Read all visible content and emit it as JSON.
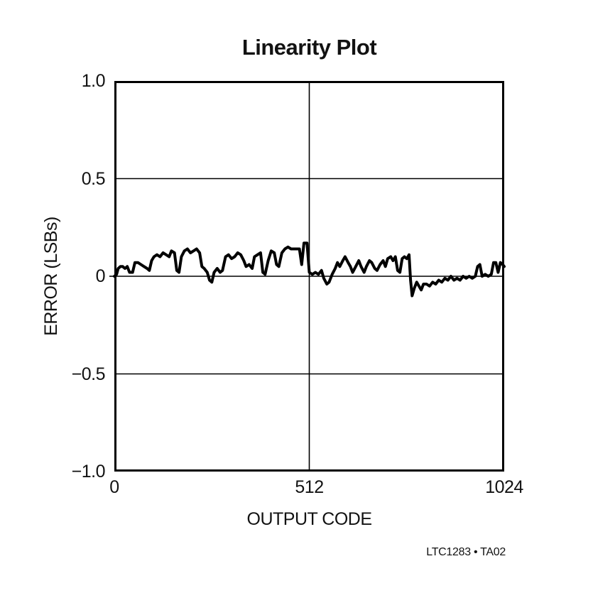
{
  "page": {
    "background": "#ffffff",
    "text_color": "#121212"
  },
  "footer": {
    "figure_ref": "LTC1283 • TA02"
  },
  "chart_data": {
    "type": "line",
    "title": "Linearity Plot",
    "xlabel": "OUTPUT CODE",
    "ylabel": "ERROR (LSBs)",
    "xlim": [
      0,
      1024
    ],
    "ylim": [
      -1.0,
      1.0
    ],
    "grid": true,
    "legend_position": "none",
    "frame_color": "#000000",
    "grid_color": "#000000",
    "line_color": "#000000",
    "annotation": "LTC1283 • TA02",
    "x_ticks": [
      {
        "v": 0,
        "label": "0"
      },
      {
        "v": 512,
        "label": "512"
      },
      {
        "v": 1024,
        "label": "1024"
      }
    ],
    "y_ticks": [
      {
        "v": 1.0,
        "label": "1.0"
      },
      {
        "v": 0.5,
        "label": "0.5"
      },
      {
        "v": 0,
        "label": "0"
      },
      {
        "v": -0.5,
        "label": "−0.5"
      },
      {
        "v": -1.0,
        "label": "−1.0"
      }
    ],
    "series": [
      {
        "name": "linearity error (LSBs) vs output code",
        "points": [
          [
            0,
            0.0
          ],
          [
            6,
            0.01
          ],
          [
            10,
            0.04
          ],
          [
            16,
            0.05
          ],
          [
            22,
            0.05
          ],
          [
            28,
            0.04
          ],
          [
            34,
            0.05
          ],
          [
            40,
            0.02
          ],
          [
            48,
            0.02
          ],
          [
            54,
            0.07
          ],
          [
            62,
            0.07
          ],
          [
            70,
            0.06
          ],
          [
            78,
            0.05
          ],
          [
            86,
            0.04
          ],
          [
            92,
            0.03
          ],
          [
            98,
            0.08
          ],
          [
            104,
            0.1
          ],
          [
            112,
            0.11
          ],
          [
            120,
            0.1
          ],
          [
            128,
            0.12
          ],
          [
            136,
            0.11
          ],
          [
            144,
            0.1
          ],
          [
            150,
            0.13
          ],
          [
            158,
            0.12
          ],
          [
            164,
            0.03
          ],
          [
            170,
            0.02
          ],
          [
            176,
            0.1
          ],
          [
            184,
            0.13
          ],
          [
            192,
            0.14
          ],
          [
            200,
            0.12
          ],
          [
            208,
            0.13
          ],
          [
            216,
            0.14
          ],
          [
            224,
            0.12
          ],
          [
            230,
            0.05
          ],
          [
            236,
            0.04
          ],
          [
            244,
            0.02
          ],
          [
            250,
            -0.02
          ],
          [
            256,
            -0.03
          ],
          [
            262,
            0.02
          ],
          [
            270,
            0.04
          ],
          [
            278,
            0.02
          ],
          [
            284,
            0.03
          ],
          [
            292,
            0.1
          ],
          [
            300,
            0.11
          ],
          [
            308,
            0.09
          ],
          [
            316,
            0.1
          ],
          [
            324,
            0.12
          ],
          [
            332,
            0.11
          ],
          [
            340,
            0.08
          ],
          [
            346,
            0.05
          ],
          [
            354,
            0.06
          ],
          [
            362,
            0.04
          ],
          [
            368,
            0.1
          ],
          [
            376,
            0.11
          ],
          [
            384,
            0.12
          ],
          [
            390,
            0.02
          ],
          [
            396,
            0.01
          ],
          [
            404,
            0.08
          ],
          [
            412,
            0.13
          ],
          [
            420,
            0.12
          ],
          [
            426,
            0.06
          ],
          [
            432,
            0.05
          ],
          [
            440,
            0.12
          ],
          [
            448,
            0.14
          ],
          [
            456,
            0.15
          ],
          [
            464,
            0.14
          ],
          [
            472,
            0.14
          ],
          [
            480,
            0.14
          ],
          [
            486,
            0.14
          ],
          [
            492,
            0.06
          ],
          [
            498,
            0.17
          ],
          [
            506,
            0.17
          ],
          [
            512,
            0.02
          ],
          [
            520,
            0.01
          ],
          [
            528,
            0.02
          ],
          [
            536,
            0.01
          ],
          [
            544,
            0.03
          ],
          [
            550,
            -0.01
          ],
          [
            558,
            -0.04
          ],
          [
            564,
            -0.03
          ],
          [
            572,
            0.01
          ],
          [
            580,
            0.04
          ],
          [
            586,
            0.07
          ],
          [
            592,
            0.05
          ],
          [
            600,
            0.08
          ],
          [
            606,
            0.1
          ],
          [
            614,
            0.07
          ],
          [
            620,
            0.05
          ],
          [
            626,
            0.02
          ],
          [
            634,
            0.05
          ],
          [
            642,
            0.08
          ],
          [
            648,
            0.05
          ],
          [
            656,
            0.02
          ],
          [
            662,
            0.05
          ],
          [
            670,
            0.08
          ],
          [
            676,
            0.07
          ],
          [
            684,
            0.04
          ],
          [
            690,
            0.03
          ],
          [
            698,
            0.06
          ],
          [
            706,
            0.08
          ],
          [
            712,
            0.05
          ],
          [
            718,
            0.09
          ],
          [
            726,
            0.1
          ],
          [
            732,
            0.08
          ],
          [
            738,
            0.1
          ],
          [
            744,
            0.03
          ],
          [
            750,
            0.02
          ],
          [
            756,
            0.09
          ],
          [
            762,
            0.1
          ],
          [
            768,
            0.09
          ],
          [
            774,
            0.11
          ],
          [
            778,
            -0.02
          ],
          [
            782,
            -0.1
          ],
          [
            788,
            -0.06
          ],
          [
            794,
            -0.03
          ],
          [
            800,
            -0.05
          ],
          [
            806,
            -0.07
          ],
          [
            812,
            -0.04
          ],
          [
            820,
            -0.04
          ],
          [
            828,
            -0.05
          ],
          [
            836,
            -0.03
          ],
          [
            844,
            -0.04
          ],
          [
            852,
            -0.02
          ],
          [
            860,
            -0.03
          ],
          [
            868,
            -0.01
          ],
          [
            876,
            -0.02
          ],
          [
            884,
            0.0
          ],
          [
            892,
            -0.02
          ],
          [
            900,
            -0.01
          ],
          [
            908,
            -0.02
          ],
          [
            916,
            0.0
          ],
          [
            924,
            -0.01
          ],
          [
            932,
            0.0
          ],
          [
            940,
            -0.01
          ],
          [
            948,
            0.0
          ],
          [
            954,
            0.05
          ],
          [
            960,
            0.06
          ],
          [
            966,
            0.0
          ],
          [
            974,
            0.01
          ],
          [
            982,
            0.0
          ],
          [
            990,
            0.01
          ],
          [
            996,
            0.07
          ],
          [
            1002,
            0.07
          ],
          [
            1008,
            0.02
          ],
          [
            1014,
            0.07
          ],
          [
            1020,
            0.06
          ],
          [
            1024,
            0.05
          ]
        ]
      }
    ]
  }
}
